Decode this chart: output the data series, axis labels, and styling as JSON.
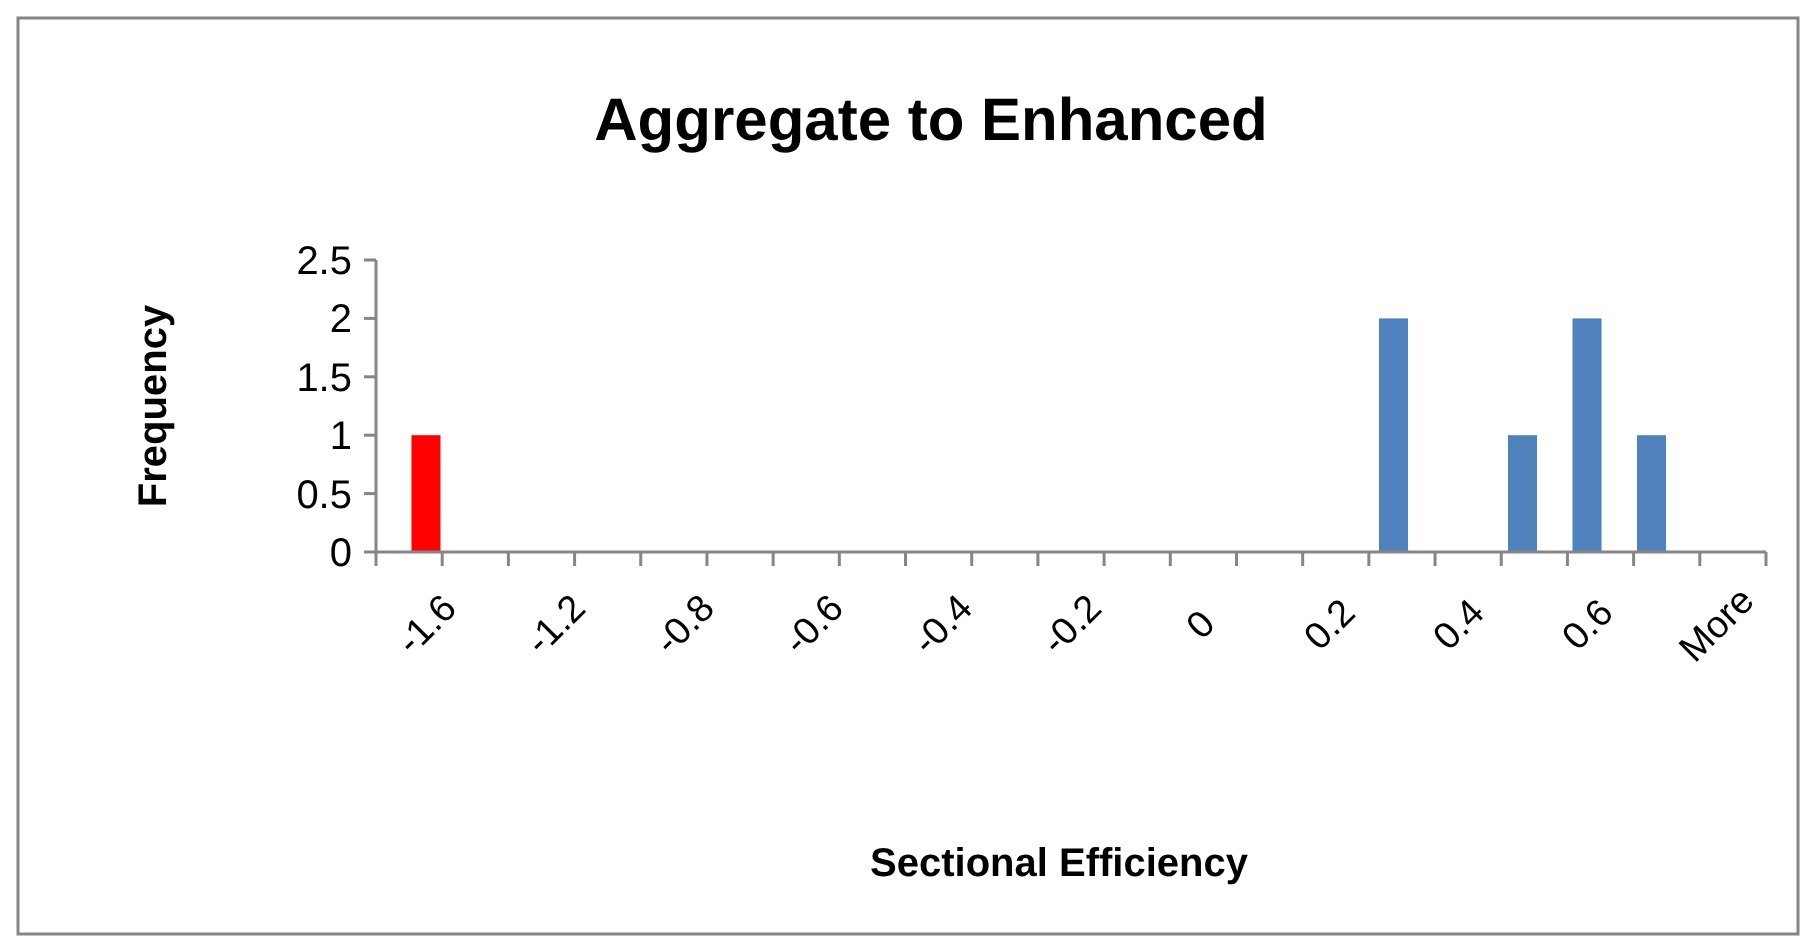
{
  "chart_data": {
    "type": "bar",
    "title": "Aggregate to Enhanced",
    "xlabel": "Sectional Efficiency",
    "ylabel": "Frequency",
    "categories": [
      "-1.6",
      null,
      "-1.2",
      null,
      "-0.8",
      null,
      "-0.6",
      null,
      "-0.4",
      null,
      "-0.2",
      null,
      "0",
      null,
      "0.2",
      null,
      "0.4",
      null,
      "0.6",
      null,
      "More"
    ],
    "values": [
      1,
      0,
      0,
      0,
      0,
      0,
      0,
      0,
      0,
      0,
      0,
      0,
      0,
      0,
      0,
      2,
      0,
      1,
      2,
      1,
      0
    ],
    "colors": [
      "#ff0000",
      "#4f81bd",
      "#4f81bd",
      "#4f81bd",
      "#4f81bd",
      "#4f81bd",
      "#4f81bd",
      "#4f81bd",
      "#4f81bd",
      "#4f81bd",
      "#4f81bd",
      "#4f81bd",
      "#4f81bd",
      "#4f81bd",
      "#4f81bd",
      "#4f81bd",
      "#4f81bd",
      "#4f81bd",
      "#4f81bd",
      "#4f81bd",
      "#4f81bd"
    ],
    "ylim": [
      0,
      2.5
    ],
    "yticks": [
      0,
      0.5,
      1,
      1.5,
      2,
      2.5
    ],
    "grid": false
  }
}
